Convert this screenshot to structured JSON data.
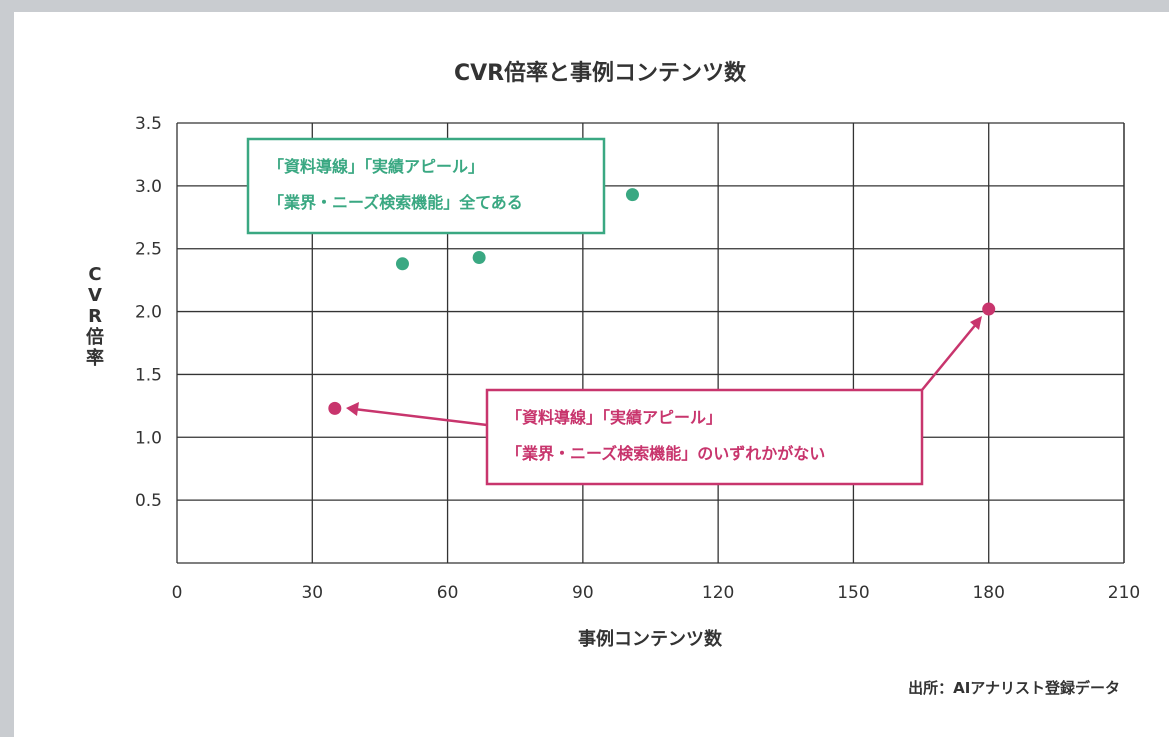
{
  "chart_data": {
    "type": "scatter",
    "title": "CVR倍率と事例コンテンツ数",
    "xlabel": "事例コンテンツ数",
    "ylabel": "CVR倍率",
    "xlim": [
      0,
      210
    ],
    "ylim": [
      0,
      3.5
    ],
    "x_ticks": [
      "0",
      "30",
      "60",
      "90",
      "120",
      "150",
      "180",
      "210"
    ],
    "y_ticks": [
      "0.5",
      "1.0",
      "1.5",
      "2.0",
      "2.5",
      "3.0",
      "3.5"
    ],
    "grid": true,
    "series": [
      {
        "color": "#3aa882",
        "points": [
          {
            "x": 50,
            "y": 2.38
          },
          {
            "x": 67,
            "y": 2.43
          },
          {
            "x": 101,
            "y": 2.93
          }
        ]
      },
      {
        "color": "#c8356d",
        "points": [
          {
            "x": 35,
            "y": 1.23
          },
          {
            "x": 180,
            "y": 2.02
          }
        ]
      }
    ],
    "annotations": [
      {
        "color": "#3aa882",
        "lines": [
          "「資料導線」「実績アピール」",
          "「業界・ニーズ検索機能」全てある"
        ]
      },
      {
        "color": "#c8356d",
        "lines": [
          "「資料導線」「実績アピール」",
          "「業界・ニーズ検索機能」のいずれかがない"
        ]
      }
    ],
    "source": "出所：AIアナリスト登録データ"
  }
}
